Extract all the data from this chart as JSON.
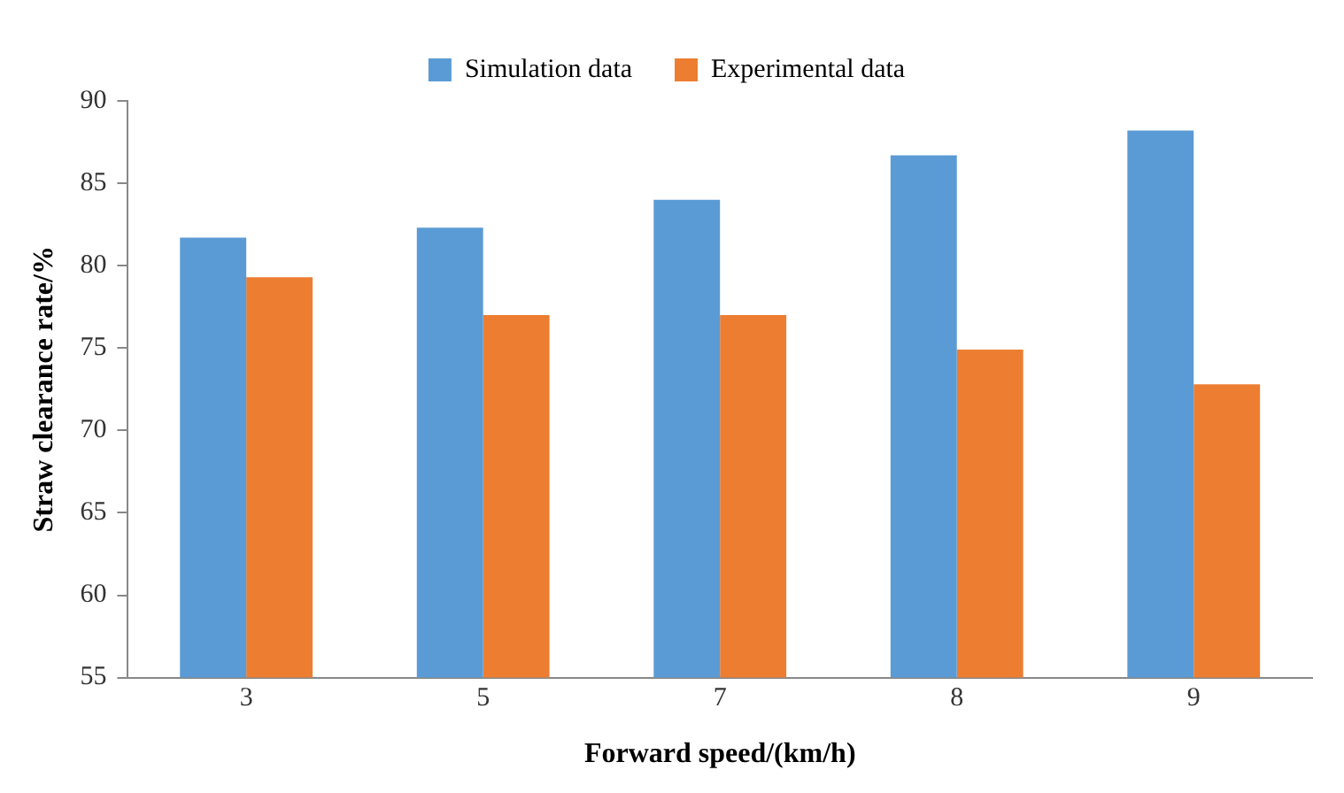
{
  "chart_data": {
    "type": "bar",
    "xlabel": "Forward speed/(km/h)",
    "ylabel": "Straw clearance rate/%",
    "categories": [
      "3",
      "5",
      "7",
      "8",
      "9"
    ],
    "series": [
      {
        "name": "Simulation data",
        "color": "#5b9bd5",
        "values": [
          81.7,
          82.3,
          84.0,
          86.7,
          88.2
        ]
      },
      {
        "name": "Experimental data",
        "color": "#ed7d31",
        "values": [
          79.3,
          77.0,
          77.0,
          74.9,
          72.8
        ]
      }
    ],
    "ylim": [
      55,
      90
    ],
    "yticks": [
      55,
      60,
      65,
      70,
      75,
      80,
      85,
      90
    ],
    "grid": false,
    "legend": "top"
  }
}
